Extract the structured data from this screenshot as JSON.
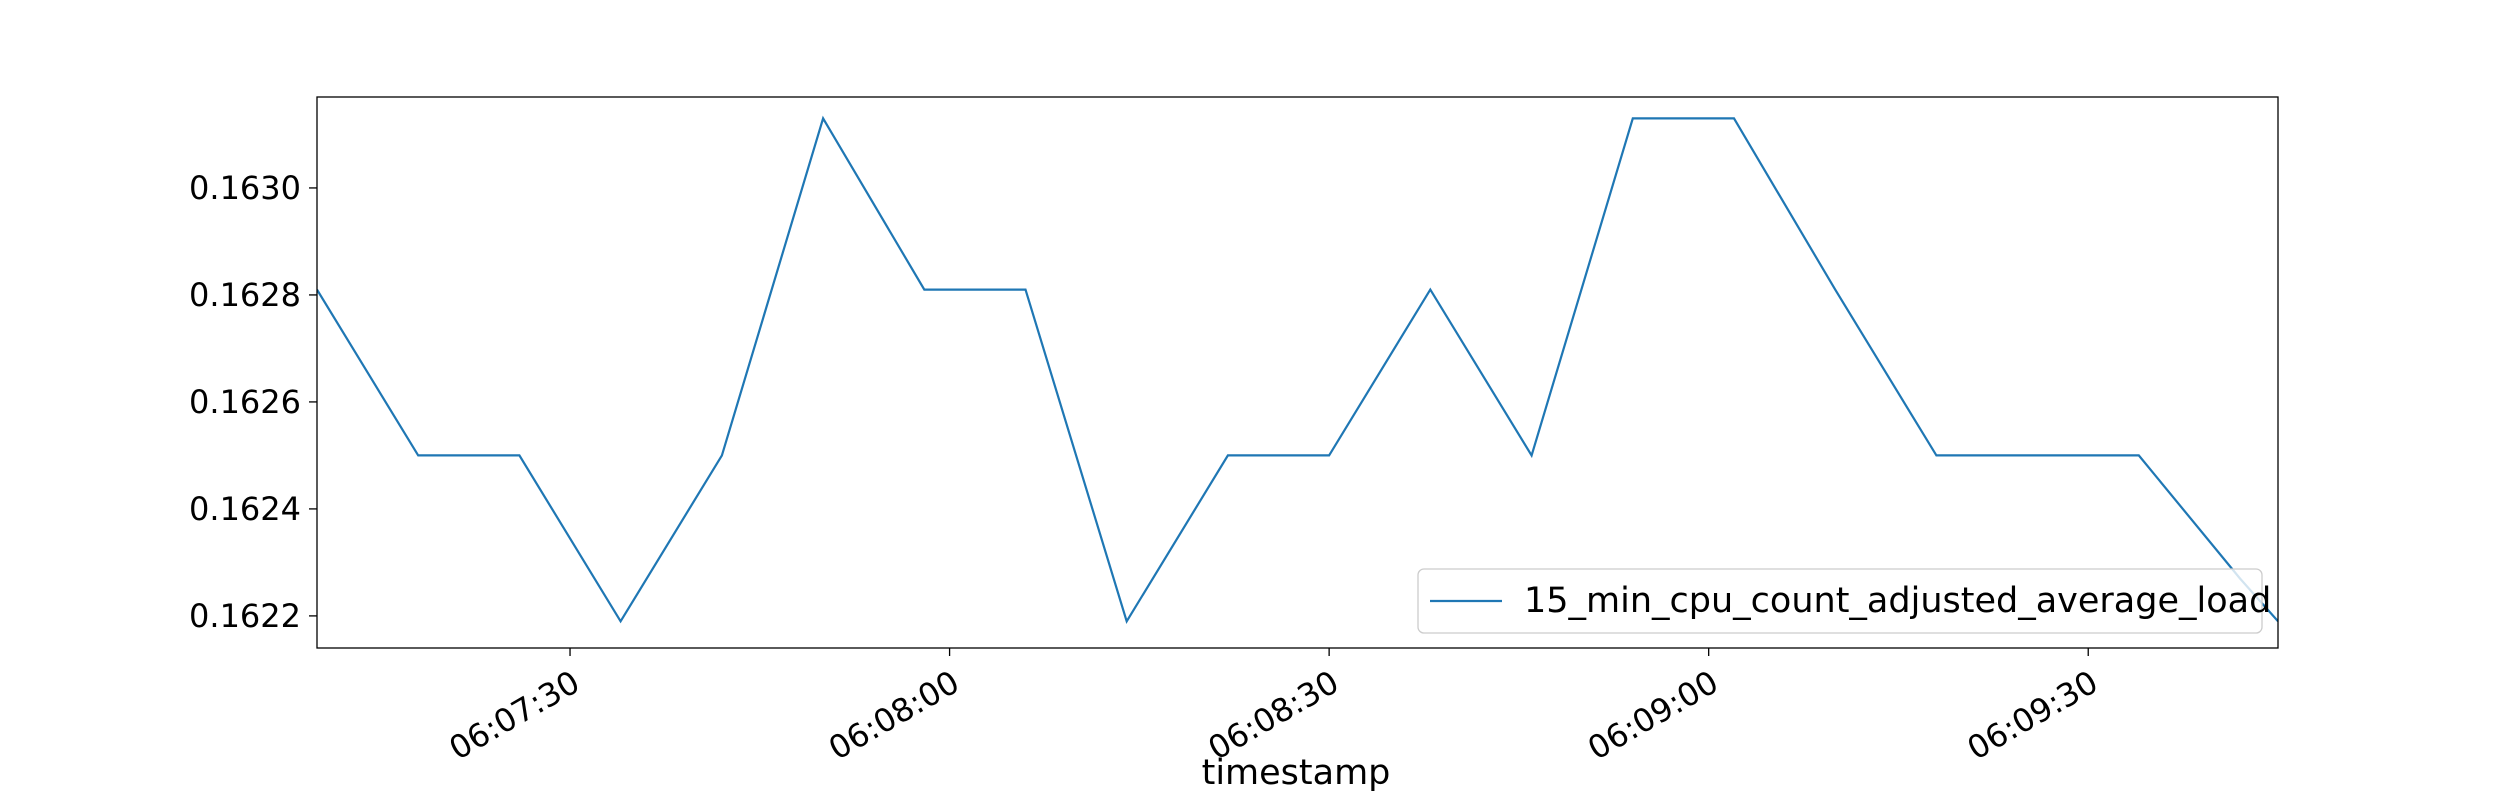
{
  "chart_data": {
    "type": "line",
    "title": "",
    "xlabel": "timestamp",
    "ylabel": "",
    "x_range": [
      "06:07:10",
      "06:09:45"
    ],
    "ylim": [
      0.16214,
      0.16317
    ],
    "x_ticks": [
      "06:07:30",
      "06:08:00",
      "06:08:30",
      "06:09:00",
      "06:09:30"
    ],
    "y_ticks": [
      "0.1622",
      "0.1624",
      "0.1626",
      "0.1628",
      "0.1630"
    ],
    "grid": false,
    "legend_position": "lower right",
    "series": [
      {
        "name": "15_min_cpu_count_adjusted_average_load",
        "color": "#1f77b4",
        "points": [
          {
            "x": "06:07:10",
            "y": 0.16281
          },
          {
            "x": "06:07:18",
            "y": 0.1625
          },
          {
            "x": "06:07:26",
            "y": 0.1625
          },
          {
            "x": "06:07:34",
            "y": 0.16219
          },
          {
            "x": "06:07:42",
            "y": 0.1625
          },
          {
            "x": "06:07:50",
            "y": 0.16313
          },
          {
            "x": "06:07:58",
            "y": 0.16281
          },
          {
            "x": "06:08:06",
            "y": 0.16281
          },
          {
            "x": "06:08:14",
            "y": 0.16219
          },
          {
            "x": "06:08:22",
            "y": 0.1625
          },
          {
            "x": "06:08:30",
            "y": 0.1625
          },
          {
            "x": "06:08:38",
            "y": 0.16281
          },
          {
            "x": "06:08:46",
            "y": 0.1625
          },
          {
            "x": "06:08:54",
            "y": 0.16313
          },
          {
            "x": "06:09:02",
            "y": 0.16313
          },
          {
            "x": "06:09:10",
            "y": 0.16281
          },
          {
            "x": "06:09:18",
            "y": 0.1625
          },
          {
            "x": "06:09:26",
            "y": 0.1625
          },
          {
            "x": "06:09:34",
            "y": 0.1625
          },
          {
            "x": "06:09:42",
            "y": 0.16227
          },
          {
            "x": "06:09:45",
            "y": 0.16219
          }
        ]
      }
    ]
  }
}
